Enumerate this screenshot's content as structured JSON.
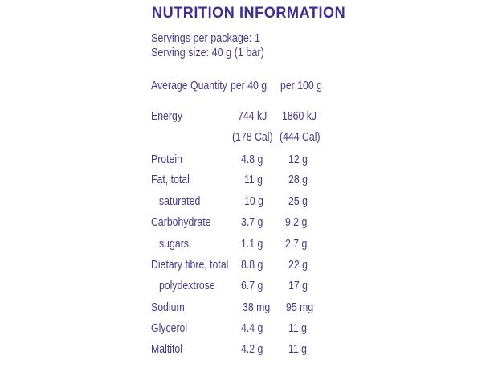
{
  "title": "NUTRITION INFORMATION",
  "servings_per_package": "Servings per package: 1",
  "serving_size": "Serving size: 40 g (1 bar)",
  "headers": {
    "quantity": "Average Quantity",
    "per_serving": "per 40 g",
    "per_100g": "per 100 g"
  },
  "rows": [
    {
      "name": "Energy",
      "per_serving": "744 kJ",
      "per_100g": "1860 kJ"
    },
    {
      "name": "",
      "per_serving": "(178 Cal)",
      "per_100g": "(444 Cal)"
    },
    {
      "name": "Protein",
      "per_serving": "4.8 g",
      "per_100g": "12 g"
    },
    {
      "name": "Fat, total",
      "per_serving": "11 g",
      "per_100g": "28 g"
    },
    {
      "name": "saturated",
      "per_serving": "10 g",
      "per_100g": "25 g"
    },
    {
      "name": "Carbohydrate",
      "per_serving": "3.7 g",
      "per_100g": "9.2 g"
    },
    {
      "name": "sugars",
      "per_serving": "1.1 g",
      "per_100g": "2.7 g"
    },
    {
      "name": "Dietary fibre, total",
      "per_serving": "8.8 g",
      "per_100g": "22 g"
    },
    {
      "name": "polydextrose",
      "per_serving": "6.7 g",
      "per_100g": "17 g"
    },
    {
      "name": "Sodium",
      "per_serving": "38 mg",
      "per_100g": "95 mg"
    },
    {
      "name": "Glycerol",
      "per_serving": "4.4 g",
      "per_100g": "11 g"
    },
    {
      "name": "Maltitol",
      "per_serving": "4.2 g",
      "per_100g": "11 g"
    }
  ],
  "colors": {
    "title": "#3e2e93",
    "text": "#4a3a86",
    "background": "#ffffff"
  }
}
